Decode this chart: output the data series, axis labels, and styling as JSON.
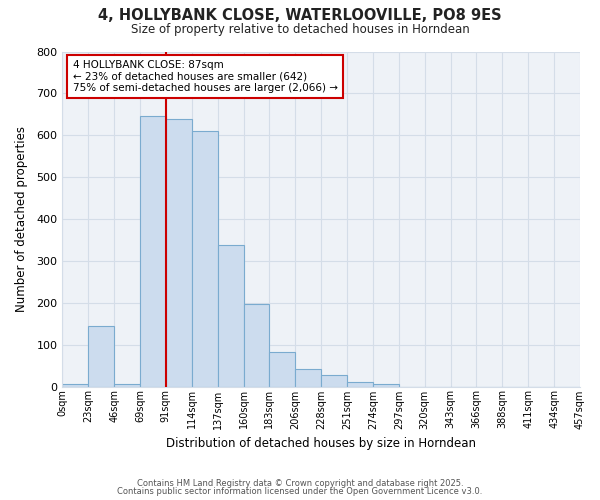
{
  "title": "4, HOLLYBANK CLOSE, WATERLOOVILLE, PO8 9ES",
  "subtitle": "Size of property relative to detached houses in Horndean",
  "xlabel": "Distribution of detached houses by size in Horndean",
  "ylabel": "Number of detached properties",
  "bin_labels": [
    "0sqm",
    "23sqm",
    "46sqm",
    "69sqm",
    "91sqm",
    "114sqm",
    "137sqm",
    "160sqm",
    "183sqm",
    "206sqm",
    "228sqm",
    "251sqm",
    "274sqm",
    "297sqm",
    "320sqm",
    "343sqm",
    "366sqm",
    "388sqm",
    "411sqm",
    "434sqm",
    "457sqm"
  ],
  "bar_heights": [
    5,
    145,
    5,
    645,
    640,
    610,
    338,
    198,
    83,
    42,
    27,
    10,
    5,
    0,
    0,
    0,
    0,
    0,
    0,
    0
  ],
  "bar_color": "#ccdcee",
  "bar_edge_color": "#7aabcf",
  "grid_color": "#d4dde8",
  "vline_x_index": 4,
  "vline_color": "#cc0000",
  "annotation_title": "4 HOLLYBANK CLOSE: 87sqm",
  "annotation_line1": "← 23% of detached houses are smaller (642)",
  "annotation_line2": "75% of semi-detached houses are larger (2,066) →",
  "annotation_box_color": "white",
  "annotation_box_edge": "#cc0000",
  "ylim": [
    0,
    800
  ],
  "yticks": [
    0,
    100,
    200,
    300,
    400,
    500,
    600,
    700,
    800
  ],
  "footer1": "Contains HM Land Registry data © Crown copyright and database right 2025.",
  "footer2": "Contains public sector information licensed under the Open Government Licence v3.0.",
  "bg_color": "#ffffff",
  "plot_bg_color": "#eef2f7"
}
